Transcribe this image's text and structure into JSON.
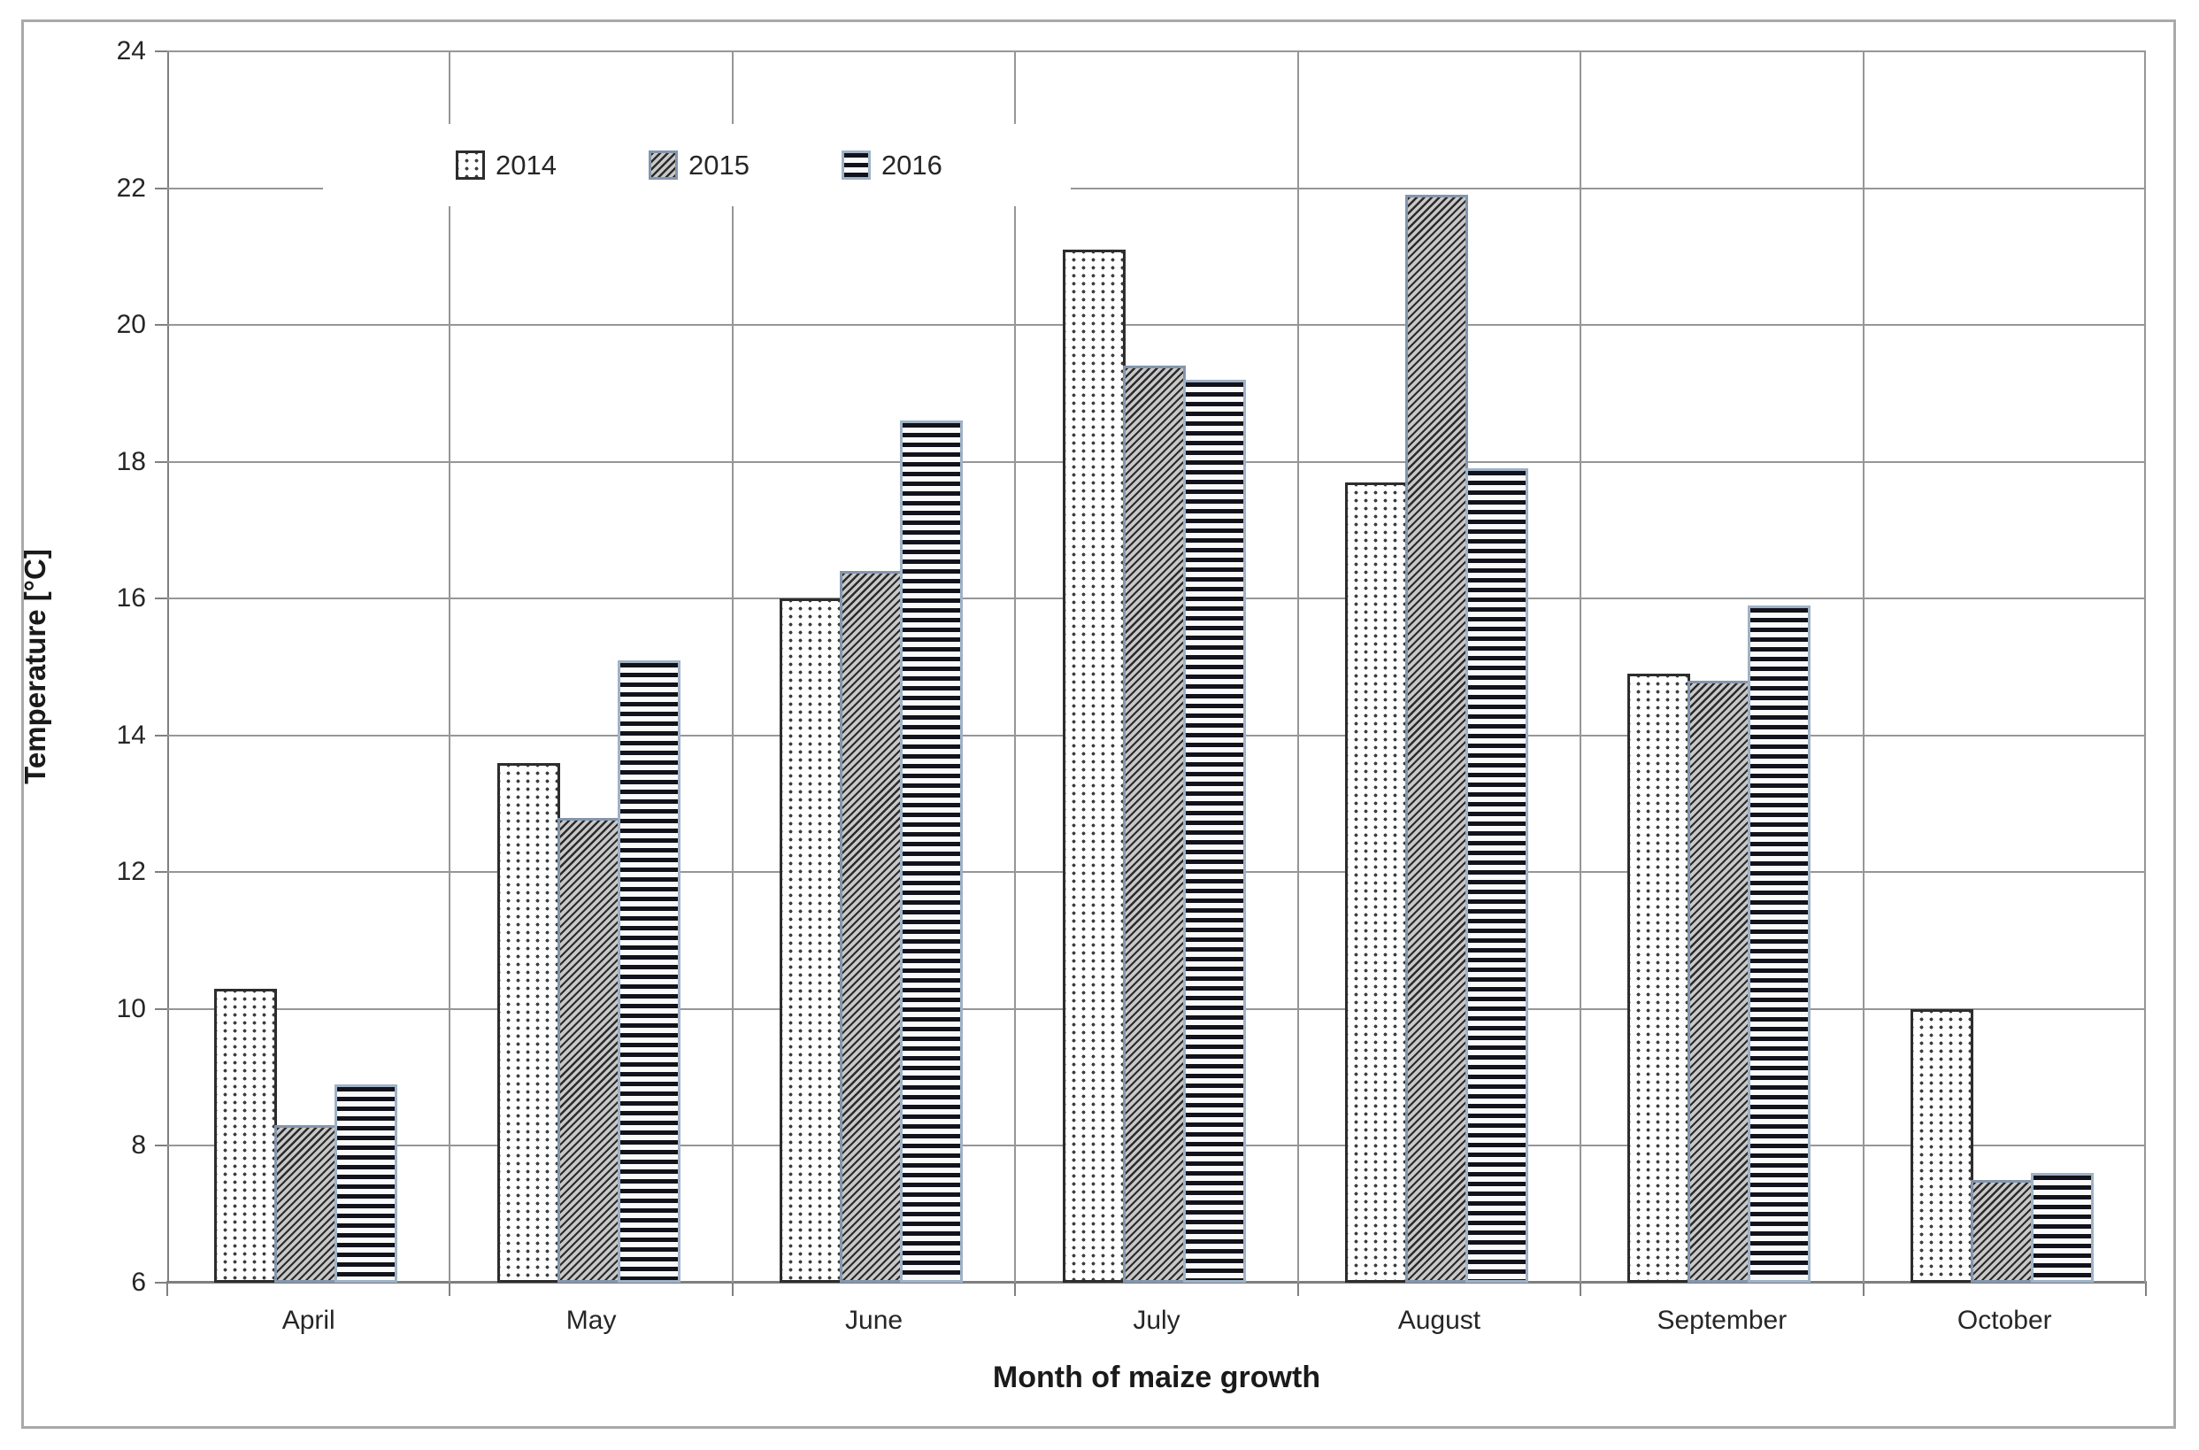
{
  "figure": {
    "background": "#ffffff",
    "frame_color": "#a9a9a9"
  },
  "chart_data": {
    "type": "bar",
    "title": "",
    "xlabel": "Month of maize growth",
    "ylabel": "Temperature [°C]",
    "categories": [
      "April",
      "May",
      "June",
      "July",
      "August",
      "September",
      "October"
    ],
    "series": [
      {
        "name": "2014",
        "pattern": "dots",
        "values": [
          10.3,
          13.6,
          16.0,
          21.1,
          17.7,
          14.9,
          10.0
        ]
      },
      {
        "name": "2015",
        "pattern": "diagonal-hatch",
        "values": [
          8.3,
          12.8,
          16.4,
          19.4,
          21.9,
          14.8,
          7.5
        ]
      },
      {
        "name": "2016",
        "pattern": "horizontal-stripes",
        "values": [
          8.9,
          15.1,
          18.6,
          19.2,
          17.9,
          15.9,
          7.6
        ]
      }
    ],
    "ylim": [
      6,
      24
    ],
    "yticks": [
      6,
      8,
      10,
      12,
      14,
      16,
      18,
      20,
      22,
      24
    ],
    "grid": true,
    "legend_position": "top-inside",
    "gridline_color": "#969696",
    "pattern_colors": {
      "dots_dot": "#3f3f3f",
      "dots_border": "#2d2d2d",
      "diagonal_line": "#2b2b2b",
      "diagonal_border": "#8496ac",
      "stripe_line": "#12121c",
      "stripe_border": "#9fb2c6"
    }
  }
}
